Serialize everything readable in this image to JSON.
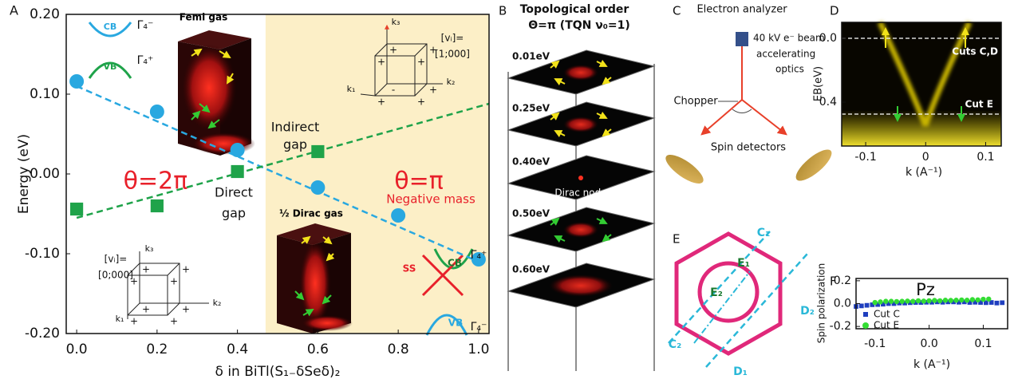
{
  "chart_data": [
    {
      "type": "scatter",
      "label": "A",
      "ylabel": "Energy (eV)",
      "xlabel": "δ in BiTl(S₁₋δSeδ)₂",
      "xlim": [
        -0.026,
        1.026
      ],
      "ylim": [
        -0.2,
        0.2
      ],
      "xticks": [
        {
          "value": 0,
          "label": "0.0"
        },
        0.2,
        0.4,
        0.6,
        0.8,
        {
          "value": 1,
          "label": "1.0"
        }
      ],
      "yticks": [
        {
          "value": -0.2,
          "label": "-0.20"
        },
        {
          "value": -0.1,
          "label": "-0.10"
        },
        {
          "value": 0,
          "label": "0.00"
        },
        {
          "value": 0.1,
          "label": "0.10"
        },
        {
          "value": 0.2,
          "label": "0.20"
        }
      ],
      "highlight_from": 0.47,
      "highlight_color": "#fcefc7",
      "series": [
        {
          "color": "#29a8e0",
          "marker": "dashed-line",
          "x": [
            0,
            1
          ],
          "values": [
            0.11,
            -0.11
          ]
        },
        {
          "color": "#1fa34a",
          "marker": "dashed-line",
          "x": [
            0,
            1.026
          ],
          "values": [
            -0.055,
            0.088
          ]
        },
        {
          "color": "#29a8e0",
          "marker": "circle",
          "x": [
            0,
            0.2,
            0.4,
            0.6,
            0.8,
            1
          ],
          "values": [
            0.116,
            0.078,
            0.03,
            -0.017,
            -0.052,
            -0.107
          ]
        },
        {
          "color": "#1fa34a",
          "marker": "square",
          "x": [
            0,
            0.2,
            0.4,
            0.6
          ],
          "values": [
            -0.044,
            -0.04,
            0.003,
            0.028
          ]
        }
      ],
      "annotations": [
        "Femi gas",
        "Indirect",
        "gap",
        "Direct",
        "gap",
        "θ=2π",
        "θ=π",
        "Negative mass",
        "½ Dirac gas",
        "CB",
        "VB",
        "Γ₄⁻",
        "Γ₄⁺",
        "[vᵢ]=",
        "[1;000]",
        "[vᵢ]=",
        "[0;000]",
        "k₃",
        "k₂",
        "k₁",
        "k₃",
        "k₂",
        "k₁",
        "CB",
        "SS",
        "VB",
        "Γ₄⁺",
        "Γ₄⁻"
      ],
      "cube_signs": [
        [
          "+",
          "+",
          "+",
          "+",
          "+",
          "+",
          "-",
          "+"
        ],
        [
          "+",
          "+",
          "+",
          "+",
          "+",
          "+",
          "+",
          "+"
        ]
      ]
    },
    {
      "type": "image",
      "label": "D",
      "ylabel": "EB(eV)",
      "xlabel": "k (A⁻¹)",
      "xlim": [
        -0.14,
        0.126
      ],
      "ylim": [
        -0.1,
        0.675
      ],
      "y_inverted": true,
      "xticks": [
        -0.1,
        0,
        0.1
      ],
      "yticks": [
        {
          "value": 0,
          "label": "0.0"
        },
        0.4
      ],
      "annotations": [
        "Cuts C,D",
        "Cut E"
      ]
    },
    {
      "type": "scatter",
      "label": "F",
      "title": "Pz",
      "ylabel": "Spin polarization",
      "xlabel": "k (A⁻¹)",
      "xlim": [
        -0.135,
        0.145
      ],
      "ylim": [
        -0.22,
        0.22
      ],
      "xticks": [
        -0.1,
        {
          "value": 0,
          "label": "0.0"
        },
        0.1
      ],
      "yticks": [
        -0.2,
        {
          "value": 0,
          "label": "0.0"
        },
        0.2
      ],
      "legend": "lower left",
      "series": [
        {
          "name": "Cut C",
          "color": "#1f3fbf",
          "marker": "square",
          "x": [
            -0.135,
            -0.125,
            -0.115,
            -0.105,
            -0.095,
            -0.085,
            -0.075,
            -0.065,
            -0.055,
            -0.045,
            -0.035,
            -0.025,
            -0.015,
            -0.005,
            0.005,
            0.015,
            0.025,
            0.035,
            0.045,
            0.055,
            0.065,
            0.075,
            0.085,
            0.095,
            0.105,
            0.115,
            0.125,
            0.135
          ],
          "values": [
            -0.025,
            -0.02,
            -0.015,
            -0.01,
            -0.008,
            -0.005,
            0.0,
            0.0,
            0.005,
            0.005,
            0.008,
            0.01,
            0.01,
            0.012,
            0.012,
            0.015,
            0.012,
            0.015,
            0.015,
            0.012,
            0.015,
            0.01,
            0.012,
            0.01,
            0.008,
            0.01,
            0.005,
            0.008
          ]
        },
        {
          "name": "Cut E",
          "color": "#33dd33",
          "marker": "circle",
          "x": [
            -0.1,
            -0.09,
            -0.08,
            -0.07,
            -0.06,
            -0.05,
            -0.04,
            -0.03,
            -0.02,
            -0.01,
            0,
            0.01,
            0.02,
            0.03,
            0.04,
            0.05,
            0.06,
            0.07,
            0.08,
            0.09,
            0.1,
            0.11
          ],
          "values": [
            0.01,
            0.015,
            0.02,
            0.02,
            0.018,
            0.02,
            0.022,
            0.02,
            0.025,
            0.022,
            0.025,
            0.028,
            0.025,
            0.03,
            0.028,
            0.03,
            0.032,
            0.03,
            0.035,
            0.033,
            0.038,
            0.04
          ]
        }
      ]
    }
  ],
  "panel_B": {
    "label": "B",
    "title": "Topological order",
    "subtitle": "Θ=π (TQN ν₀=1)",
    "layers": [
      "0.01eV",
      "0.25eV",
      "0.40eV",
      "0.50eV",
      "0.60eV"
    ],
    "node": "Dirac node"
  },
  "panel_C": {
    "label": "C",
    "analyzer": "Electron analyzer",
    "beam": [
      "40 kV e⁻ beam",
      "accelerating",
      "optics"
    ],
    "chopper": "Chopper",
    "detectors": "Spin detectors"
  },
  "panel_E": {
    "label": "E",
    "cuts": [
      "C₁",
      "C₂",
      "D₁",
      "D₂",
      "E₁",
      "E₂"
    ]
  }
}
